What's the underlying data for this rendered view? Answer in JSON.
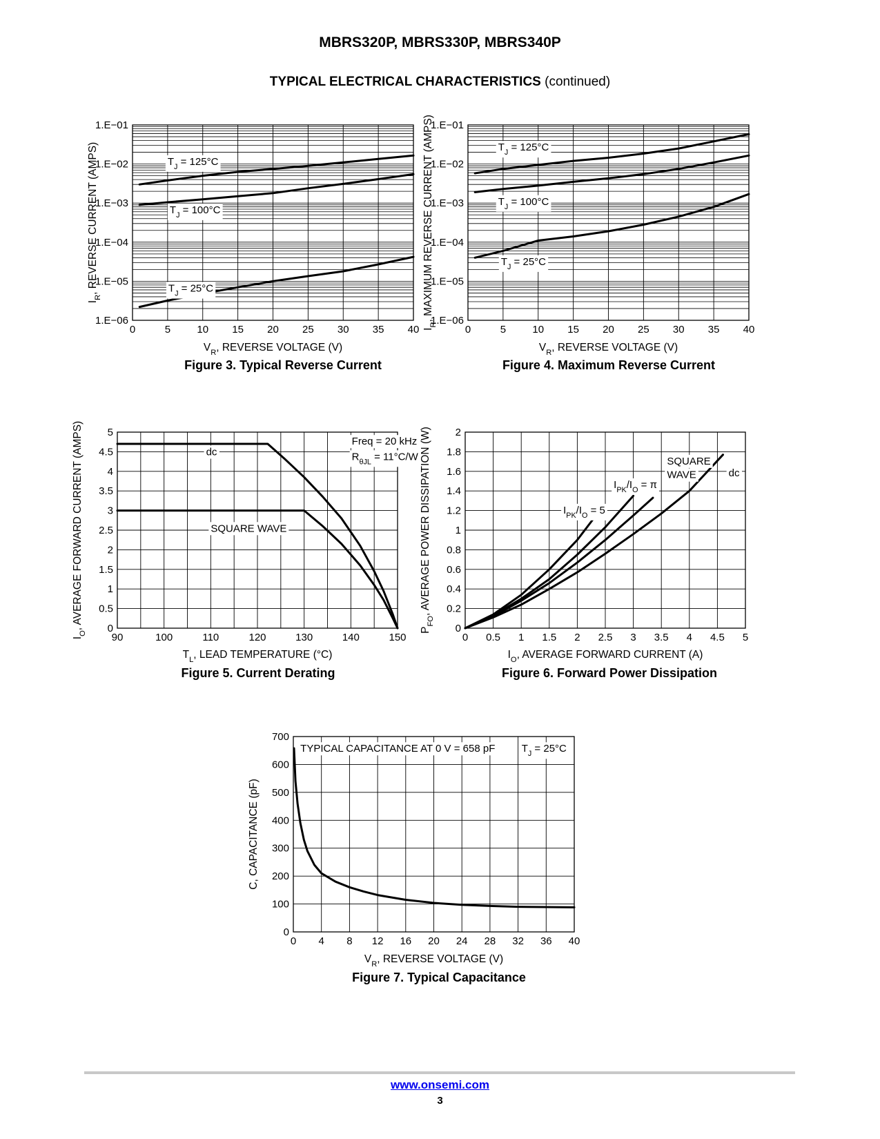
{
  "document": {
    "title": "MBRS320P, MBRS330P, MBRS340P",
    "section_title": "TYPICAL ELECTRICAL CHARACTERISTICS",
    "section_suffix": "(continued)",
    "footer_link": "www.onsemi.com",
    "page_number": "3"
  },
  "chart_data": [
    {
      "id": "fig3",
      "type": "line",
      "caption": "Figure 3. Typical Reverse Current",
      "xlabel": "V_R, REVERSE VOLTAGE (V)",
      "ylabel": "I_R, REVERSE CURRENT (AMPS)",
      "xlim": [
        0,
        40
      ],
      "ylim": [
        1e-06,
        0.1
      ],
      "yscale": "log",
      "x_ticks": [
        0,
        5,
        10,
        15,
        20,
        25,
        30,
        35,
        40
      ],
      "y_ticks": [
        1e-06,
        1e-05,
        0.0001,
        0.001,
        0.01,
        0.1
      ],
      "y_tick_labels": [
        "1.E−06",
        "1.E−05",
        "1.E−04",
        "1.E−03",
        "1.E−02",
        "1.E−01"
      ],
      "grid": true,
      "series": [
        {
          "name": "T_J = 125°C",
          "x": [
            1,
            5,
            10,
            15,
            20,
            25,
            30,
            35,
            40
          ],
          "y": [
            0.003,
            0.0038,
            0.005,
            0.0063,
            0.0075,
            0.009,
            0.011,
            0.0135,
            0.0165
          ]
        },
        {
          "name": "T_J = 100°C",
          "x": [
            1,
            5,
            10,
            15,
            20,
            25,
            30,
            35,
            40
          ],
          "y": [
            0.0009,
            0.00105,
            0.00125,
            0.0015,
            0.0018,
            0.0024,
            0.0031,
            0.0041,
            0.0055
          ]
        },
        {
          "name": "T_J = 25°C",
          "x": [
            1,
            5,
            10,
            15,
            20,
            25,
            30,
            35,
            40
          ],
          "y": [
            2.2e-06,
            3.2e-06,
            4.8e-06,
            7e-06,
            1e-05,
            1.35e-05,
            1.8e-05,
            2.7e-05,
            4.2e-05
          ]
        }
      ],
      "annotations": [
        {
          "text": "T_J = 125°C",
          "x": 5,
          "y": 0.0095
        },
        {
          "text": "T_J = 100°C",
          "x": 5.3,
          "y": 0.00055
        },
        {
          "text": "T_J = 25°C",
          "x": 5.1,
          "y": 5.4e-06
        }
      ]
    },
    {
      "id": "fig4",
      "type": "line",
      "caption": "Figure 4. Maximum Reverse Current",
      "xlabel": "V_R, REVERSE VOLTAGE (V)",
      "ylabel": "I_R, MAXIMUM REVERSE CURRENT (AMPS)",
      "xlim": [
        0,
        40
      ],
      "ylim": [
        1e-06,
        0.1
      ],
      "yscale": "log",
      "x_ticks": [
        0,
        5,
        10,
        15,
        20,
        25,
        30,
        35,
        40
      ],
      "y_ticks": [
        1e-06,
        1e-05,
        0.0001,
        0.001,
        0.01,
        0.1
      ],
      "y_tick_labels": [
        "1.E−06",
        "1.E−05",
        "1.E−04",
        "1.E−03",
        "1.E−02",
        "1.E−01"
      ],
      "grid": true,
      "series": [
        {
          "name": "T_J = 125°C",
          "x": [
            1,
            5,
            10,
            15,
            20,
            25,
            30,
            35,
            40
          ],
          "y": [
            0.0058,
            0.0075,
            0.0095,
            0.012,
            0.0145,
            0.0185,
            0.025,
            0.038,
            0.058
          ]
        },
        {
          "name": "T_J = 100°C",
          "x": [
            1,
            5,
            10,
            15,
            20,
            25,
            30,
            35,
            40
          ],
          "y": [
            0.0019,
            0.0023,
            0.0028,
            0.0035,
            0.0043,
            0.0055,
            0.0075,
            0.011,
            0.0165
          ]
        },
        {
          "name": "T_J = 25°C",
          "x": [
            1,
            5,
            10,
            15,
            20,
            25,
            30,
            35,
            40
          ],
          "y": [
            4e-05,
            6e-05,
            0.00011,
            0.00014,
            0.00019,
            0.00028,
            0.00045,
            0.0008,
            0.0017
          ]
        }
      ],
      "annotations": [
        {
          "text": "T_J = 125°C",
          "x": 4.3,
          "y": 0.022
        },
        {
          "text": "T_J = 100°C",
          "x": 4.3,
          "y": 0.0009
        },
        {
          "text": "T_J = 25°C",
          "x": 4.7,
          "y": 2.6e-05
        }
      ]
    },
    {
      "id": "fig5",
      "type": "line",
      "caption": "Figure 5. Current Derating",
      "xlabel": "T_L, LEAD TEMPERATURE (°C)",
      "ylabel": "I_O, AVERAGE FORWARD CURRENT (AMPS)",
      "xlim": [
        90,
        150
      ],
      "ylim": [
        0,
        5
      ],
      "x_ticks": [
        90,
        100,
        110,
        120,
        130,
        140,
        150
      ],
      "y_ticks": [
        0,
        0.5,
        1,
        1.5,
        2,
        2.5,
        3,
        3.5,
        4,
        4.5,
        5
      ],
      "x_grid_step": 5,
      "grid": true,
      "series": [
        {
          "name": "dc",
          "x": [
            90,
            122.2,
            126,
            130,
            134,
            138,
            142,
            145,
            147,
            149,
            150
          ],
          "y": [
            4.7,
            4.7,
            4.3,
            3.85,
            3.35,
            2.8,
            2.1,
            1.45,
            0.95,
            0.35,
            0
          ]
        },
        {
          "name": "SQUARE WAVE",
          "x": [
            90,
            130,
            134,
            138,
            142,
            145,
            147,
            149,
            150
          ],
          "y": [
            3,
            3,
            2.6,
            2.15,
            1.6,
            1.1,
            0.72,
            0.25,
            0
          ]
        }
      ],
      "annotations": [
        {
          "text": "Freq = 20 kHz",
          "x": 140.2,
          "y": 4.68
        },
        {
          "text": "R_θJL = 11°C/W",
          "x": 140.2,
          "y": 4.29
        },
        {
          "text": "dc",
          "x": 109,
          "y": 4.41
        },
        {
          "text": "SQUARE WAVE",
          "x": 110,
          "y": 2.46
        }
      ]
    },
    {
      "id": "fig6",
      "type": "line",
      "caption": "Figure 6. Forward Power Dissipation",
      "xlabel": "I_O, AVERAGE FORWARD CURRENT (A)",
      "ylabel": "P_FO, AVERAGE POWER DISSIPATION (W)",
      "xlim": [
        0,
        5
      ],
      "ylim": [
        0,
        2
      ],
      "x_ticks": [
        0,
        0.5,
        1,
        1.5,
        2,
        2.5,
        3,
        3.5,
        4,
        4.5,
        5
      ],
      "y_ticks": [
        0,
        0.2,
        0.4,
        0.6,
        0.8,
        1,
        1.2,
        1.4,
        1.6,
        1.8,
        2
      ],
      "grid": true,
      "series": [
        {
          "name": "I_PK/I_O = 5",
          "x": [
            0,
            0.5,
            1,
            1.5,
            2,
            2.4
          ],
          "y": [
            0,
            0.14,
            0.34,
            0.6,
            0.9,
            1.2
          ]
        },
        {
          "name": "I_PK/I_O = π",
          "x": [
            0,
            0.5,
            1,
            1.5,
            2,
            2.5,
            3
          ],
          "y": [
            0,
            0.13,
            0.3,
            0.5,
            0.75,
            1.03,
            1.35
          ]
        },
        {
          "name": "SQUARE WAVE",
          "x": [
            0,
            0.5,
            1,
            1.5,
            2,
            2.5,
            3,
            3.35
          ],
          "y": [
            0,
            0.12,
            0.28,
            0.46,
            0.67,
            0.9,
            1.15,
            1.33
          ]
        },
        {
          "name": "dc",
          "x": [
            0,
            0.5,
            1,
            1.5,
            2,
            2.5,
            3,
            3.5,
            4,
            4.6
          ],
          "y": [
            0,
            0.11,
            0.24,
            0.4,
            0.57,
            0.76,
            0.96,
            1.17,
            1.4,
            1.77
          ]
        }
      ],
      "annotations": [
        {
          "text": "I_PK/I_O = 5",
          "x": 1.75,
          "y": 1.17
        },
        {
          "text": "I_PK/I_O = π",
          "x": 2.65,
          "y": 1.43
        },
        {
          "text": "SQUARE",
          "x": 3.6,
          "y": 1.67
        },
        {
          "text": "WAVE",
          "x": 3.6,
          "y": 1.53
        },
        {
          "text": "dc",
          "x": 4.7,
          "y": 1.55
        }
      ]
    },
    {
      "id": "fig7",
      "type": "line",
      "caption": "Figure 7. Typical Capacitance",
      "xlabel": "V_R, REVERSE VOLTAGE (V)",
      "ylabel": "C, CAPACITANCE (pF)",
      "xlim": [
        0,
        40
      ],
      "ylim": [
        0,
        700
      ],
      "x_ticks": [
        0,
        4,
        8,
        12,
        16,
        20,
        24,
        28,
        32,
        36,
        40
      ],
      "y_ticks": [
        0,
        100,
        200,
        300,
        400,
        500,
        600,
        700
      ],
      "grid": true,
      "series": [
        {
          "name": "capacitance",
          "x": [
            0.1,
            0.3,
            0.6,
            1,
            1.5,
            2,
            3,
            4,
            6,
            8,
            10,
            12,
            16,
            20,
            24,
            28,
            32,
            36,
            40
          ],
          "y": [
            658,
            540,
            460,
            390,
            330,
            290,
            240,
            210,
            180,
            160,
            145,
            132,
            115,
            104,
            97,
            93,
            90,
            89,
            88
          ]
        }
      ],
      "annotations": [
        {
          "text": "TYPICAL CAPACITANCE AT 0 V = 658 pF",
          "x": 1,
          "y": 645
        },
        {
          "text": "T_J = 25°C",
          "x": 32.5,
          "y": 645
        }
      ]
    }
  ]
}
